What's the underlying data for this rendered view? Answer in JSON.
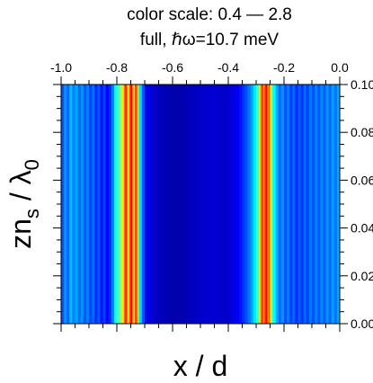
{
  "chart_data": {
    "type": "heatmap",
    "title_line1": "color scale: 0.4 — 2.8",
    "title_line2": "full, ℏω=10.7 meV",
    "xlabel": "x / d",
    "ylabel_main": "zn",
    "ylabel_sub1": "s",
    "ylabel_slash": " / λ",
    "ylabel_sub2": "0",
    "xlim": [
      -1.0,
      0.0
    ],
    "ylim": [
      0.0,
      0.1
    ],
    "x_ticks": [
      "-1.0",
      "-0.8",
      "-0.6",
      "-0.4",
      "-0.2",
      "0.0"
    ],
    "x_tick_values": [
      -1.0,
      -0.8,
      -0.6,
      -0.4,
      -0.2,
      0.0
    ],
    "y_ticks": [
      "0.00",
      "0.02",
      "0.04",
      "0.06",
      "0.08",
      "0.10"
    ],
    "y_tick_values": [
      0.0,
      0.02,
      0.04,
      0.06,
      0.08,
      0.1
    ],
    "color_scale_range": [
      0.4,
      2.8
    ],
    "colormap": [
      "#00008f",
      "#0000ff",
      "#00ffff",
      "#ffff00",
      "#ff0000"
    ],
    "stripes": [
      {
        "x": -1.0,
        "v": 1.2
      },
      {
        "x": -0.99,
        "v": 1.35
      },
      {
        "x": -0.98,
        "v": 1.25
      },
      {
        "x": -0.97,
        "v": 1.45
      },
      {
        "x": -0.96,
        "v": 1.3
      },
      {
        "x": -0.95,
        "v": 1.4
      },
      {
        "x": -0.94,
        "v": 1.25
      },
      {
        "x": -0.93,
        "v": 1.35
      },
      {
        "x": -0.92,
        "v": 1.2
      },
      {
        "x": -0.91,
        "v": 1.3
      },
      {
        "x": -0.9,
        "v": 1.15
      },
      {
        "x": -0.89,
        "v": 1.25
      },
      {
        "x": -0.88,
        "v": 1.1
      },
      {
        "x": -0.87,
        "v": 1.2
      },
      {
        "x": -0.86,
        "v": 1.05
      },
      {
        "x": -0.85,
        "v": 1.15
      },
      {
        "x": -0.84,
        "v": 1.0
      },
      {
        "x": -0.83,
        "v": 1.1
      },
      {
        "x": -0.82,
        "v": 1.3
      },
      {
        "x": -0.81,
        "v": 1.6
      },
      {
        "x": -0.8,
        "v": 1.75
      },
      {
        "x": -0.79,
        "v": 2.0
      },
      {
        "x": -0.78,
        "v": 2.25
      },
      {
        "x": -0.775,
        "v": 2.55
      },
      {
        "x": -0.77,
        "v": 2.75
      },
      {
        "x": -0.765,
        "v": 2.4
      },
      {
        "x": -0.76,
        "v": 2.2
      },
      {
        "x": -0.755,
        "v": 2.65
      },
      {
        "x": -0.75,
        "v": 2.8
      },
      {
        "x": -0.745,
        "v": 2.45
      },
      {
        "x": -0.74,
        "v": 2.1
      },
      {
        "x": -0.735,
        "v": 2.7
      },
      {
        "x": -0.73,
        "v": 2.5
      },
      {
        "x": -0.725,
        "v": 1.9
      },
      {
        "x": -0.72,
        "v": 1.5
      },
      {
        "x": -0.71,
        "v": 1.2
      },
      {
        "x": -0.7,
        "v": 0.95
      },
      {
        "x": -0.69,
        "v": 0.85
      },
      {
        "x": -0.68,
        "v": 0.78
      },
      {
        "x": -0.67,
        "v": 0.72
      },
      {
        "x": -0.66,
        "v": 0.68
      },
      {
        "x": -0.65,
        "v": 0.65
      },
      {
        "x": -0.64,
        "v": 0.62
      },
      {
        "x": -0.63,
        "v": 0.6
      },
      {
        "x": -0.62,
        "v": 0.58
      },
      {
        "x": -0.61,
        "v": 0.57
      },
      {
        "x": -0.6,
        "v": 0.56
      },
      {
        "x": -0.59,
        "v": 0.56
      },
      {
        "x": -0.58,
        "v": 0.57
      },
      {
        "x": -0.57,
        "v": 0.58
      },
      {
        "x": -0.56,
        "v": 0.6
      },
      {
        "x": -0.55,
        "v": 0.62
      },
      {
        "x": -0.54,
        "v": 0.64
      },
      {
        "x": -0.53,
        "v": 0.66
      },
      {
        "x": -0.52,
        "v": 0.68
      },
      {
        "x": -0.51,
        "v": 0.7
      },
      {
        "x": -0.5,
        "v": 0.72
      },
      {
        "x": -0.49,
        "v": 0.74
      },
      {
        "x": -0.48,
        "v": 0.75
      },
      {
        "x": -0.47,
        "v": 0.76
      },
      {
        "x": -0.46,
        "v": 0.76
      },
      {
        "x": -0.45,
        "v": 0.75
      },
      {
        "x": -0.44,
        "v": 0.74
      },
      {
        "x": -0.43,
        "v": 0.72
      },
      {
        "x": -0.42,
        "v": 0.71
      },
      {
        "x": -0.41,
        "v": 0.72
      },
      {
        "x": -0.4,
        "v": 0.76
      },
      {
        "x": -0.39,
        "v": 0.82
      },
      {
        "x": -0.38,
        "v": 0.9
      },
      {
        "x": -0.37,
        "v": 0.98
      },
      {
        "x": -0.36,
        "v": 1.05
      },
      {
        "x": -0.35,
        "v": 1.12
      },
      {
        "x": -0.34,
        "v": 1.2
      },
      {
        "x": -0.33,
        "v": 1.28
      },
      {
        "x": -0.32,
        "v": 1.4
      },
      {
        "x": -0.31,
        "v": 1.55
      },
      {
        "x": -0.3,
        "v": 1.75
      },
      {
        "x": -0.29,
        "v": 2.05
      },
      {
        "x": -0.285,
        "v": 2.5
      },
      {
        "x": -0.28,
        "v": 2.75
      },
      {
        "x": -0.275,
        "v": 2.35
      },
      {
        "x": -0.27,
        "v": 2.7
      },
      {
        "x": -0.265,
        "v": 2.8
      },
      {
        "x": -0.26,
        "v": 2.45
      },
      {
        "x": -0.255,
        "v": 2.6
      },
      {
        "x": -0.25,
        "v": 2.2
      },
      {
        "x": -0.245,
        "v": 1.85
      },
      {
        "x": -0.24,
        "v": 1.6
      },
      {
        "x": -0.23,
        "v": 1.4
      },
      {
        "x": -0.22,
        "v": 1.25
      },
      {
        "x": -0.21,
        "v": 1.35
      },
      {
        "x": -0.2,
        "v": 1.2
      },
      {
        "x": -0.19,
        "v": 1.3
      },
      {
        "x": -0.18,
        "v": 1.15
      },
      {
        "x": -0.17,
        "v": 1.25
      },
      {
        "x": -0.16,
        "v": 1.1
      },
      {
        "x": -0.15,
        "v": 1.22
      },
      {
        "x": -0.14,
        "v": 1.12
      },
      {
        "x": -0.13,
        "v": 1.25
      },
      {
        "x": -0.12,
        "v": 1.15
      },
      {
        "x": -0.11,
        "v": 1.28
      },
      {
        "x": -0.1,
        "v": 1.18
      },
      {
        "x": -0.09,
        "v": 1.3
      },
      {
        "x": -0.08,
        "v": 1.2
      },
      {
        "x": -0.07,
        "v": 1.32
      },
      {
        "x": -0.06,
        "v": 1.22
      },
      {
        "x": -0.05,
        "v": 1.35
      },
      {
        "x": -0.04,
        "v": 1.25
      },
      {
        "x": -0.03,
        "v": 1.38
      },
      {
        "x": -0.02,
        "v": 1.28
      },
      {
        "x": -0.01,
        "v": 1.4
      }
    ]
  }
}
